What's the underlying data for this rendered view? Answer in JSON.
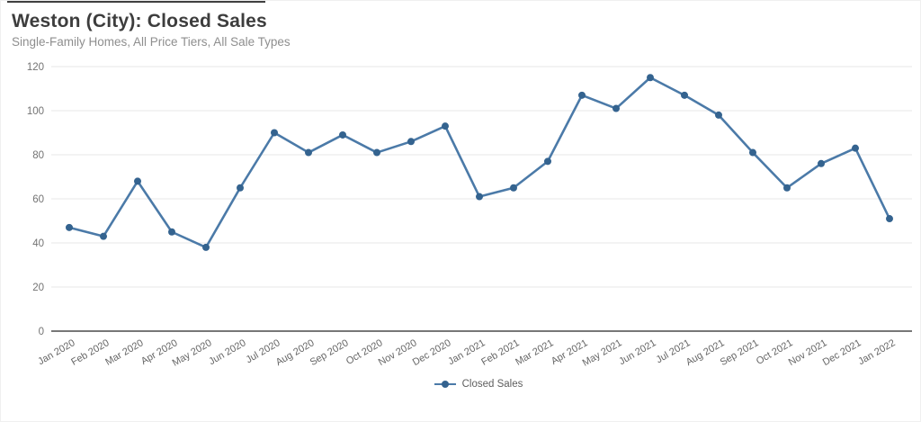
{
  "header": {
    "title": "Weston (City): Closed Sales",
    "subtitle": "Single-Family Homes, All Price Tiers, All Sale Types"
  },
  "chart_data": {
    "type": "line",
    "title": "Weston (City): Closed Sales",
    "subtitle": "Single-Family Homes, All Price Tiers, All Sale Types",
    "categories": [
      "Jan 2020",
      "Feb 2020",
      "Mar 2020",
      "Apr 2020",
      "May 2020",
      "Jun 2020",
      "Jul 2020",
      "Aug 2020",
      "Sep 2020",
      "Oct 2020",
      "Nov 2020",
      "Dec 2020",
      "Jan 2021",
      "Feb 2021",
      "Mar 2021",
      "Apr 2021",
      "May 2021",
      "Jun 2021",
      "Jul 2021",
      "Aug 2021",
      "Sep 2021",
      "Oct 2021",
      "Nov 2021",
      "Dec 2021",
      "Jan 2022"
    ],
    "series": [
      {
        "name": "Closed Sales",
        "values": [
          47,
          43,
          68,
          45,
          38,
          65,
          90,
          81,
          89,
          81,
          86,
          93,
          61,
          65,
          77,
          107,
          101,
          115,
          107,
          98,
          81,
          65,
          76,
          83,
          51
        ],
        "line_color": "#4b7aa8",
        "marker_color": "#34638f"
      }
    ],
    "xlabel": "",
    "ylabel": "",
    "ylim": [
      0,
      120
    ],
    "yticks": [
      0,
      20,
      40,
      60,
      80,
      100,
      120
    ],
    "grid": true,
    "legend_position": "bottom"
  },
  "colors": {
    "grid_line": "#e7e7e7",
    "axis_line": "#4a4a4a",
    "tick_label": "#737373",
    "x_tick_label": "#666666",
    "title_text": "#3d3d3d",
    "subtitle_text": "#8e8e8e",
    "accent_line": "#3f3f3f"
  }
}
